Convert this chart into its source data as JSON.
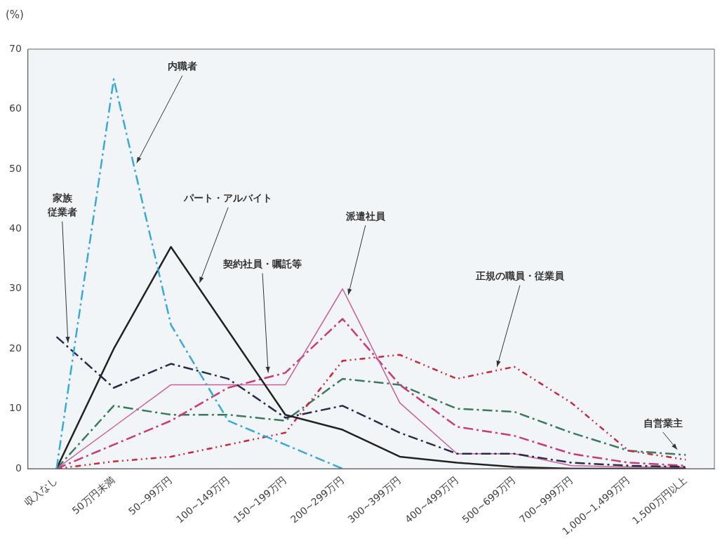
{
  "chart_data": {
    "type": "line",
    "ylabel": "(%)",
    "categories": [
      "収入なし",
      "50万円未満",
      "50~99万円",
      "100~149万円",
      "150~199万円",
      "200~299万円",
      "300~399万円",
      "400~499万円",
      "500~699万円",
      "700~999万円",
      "1,000~1,499万円",
      "1,500万円以上"
    ],
    "ylim": [
      0,
      70
    ],
    "yticks": [
      0,
      10,
      20,
      30,
      40,
      50,
      60,
      70
    ],
    "grid": false,
    "legend": false,
    "marker": "none",
    "series": [
      {
        "name": "内職者",
        "color": "#3aa8d8",
        "line_style": "dashed",
        "values": [
          0,
          65,
          24,
          8,
          4,
          0,
          null,
          null,
          null,
          null,
          null,
          null
        ]
      },
      {
        "name": "パート・アルバイト",
        "color": "#222222",
        "line_style": "solid",
        "values": [
          0,
          20,
          37,
          23,
          9,
          6.5,
          2,
          1,
          0.3,
          0,
          0,
          0
        ]
      },
      {
        "name": "家族従業者",
        "color": "#2a2a4a",
        "line_style": "dashed",
        "values": [
          22,
          13.5,
          17.5,
          15,
          8.5,
          10.5,
          6,
          2.5,
          2.5,
          1,
          0.5,
          0.3
        ]
      },
      {
        "name": "派遣社員",
        "color": "#c8609a",
        "line_style": "solid",
        "values": [
          0,
          7,
          14,
          14,
          14,
          30,
          11,
          2.5,
          2.5,
          0.5,
          0.3,
          0.2
        ]
      },
      {
        "name": "契約社員・嘱託等",
        "color": "#c83a78",
        "line_style": "dashed",
        "values": [
          0,
          4,
          8,
          13.5,
          16,
          25,
          14,
          7,
          5.5,
          2.5,
          1,
          0.5
        ]
      },
      {
        "name": "正規の職員・従業員",
        "color": "#c8283c",
        "line_style": "dotted",
        "values": [
          0,
          1.2,
          2,
          4,
          6,
          18,
          19,
          15,
          17,
          11,
          3,
          1.5
        ]
      },
      {
        "name": "自営業主",
        "color": "#3a7a5a",
        "line_style": "dashed",
        "values": [
          0,
          10.5,
          9,
          9,
          8,
          15,
          14,
          10,
          9.5,
          6,
          3,
          2.3
        ]
      }
    ]
  }
}
